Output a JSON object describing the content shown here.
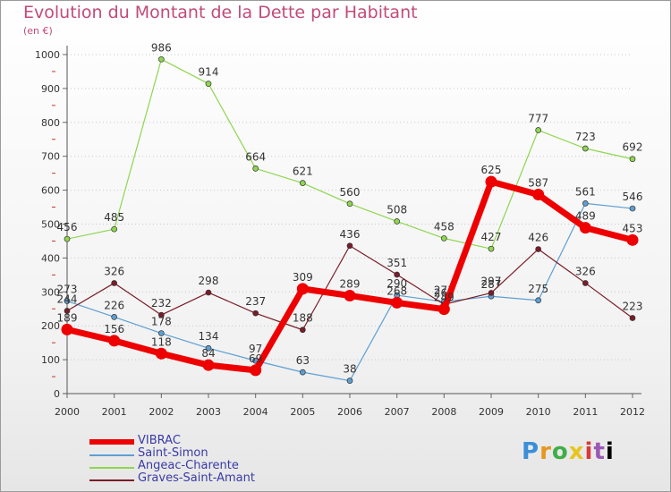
{
  "title": "Evolution du Montant de la Dette par Habitant",
  "subtitle": "(en €)",
  "logo_text": "Proxiti",
  "chart_data": {
    "type": "line",
    "x": [
      "2000",
      "2001",
      "2002",
      "2003",
      "2004",
      "2005",
      "2006",
      "2007",
      "2008",
      "2009",
      "2010",
      "2011",
      "2012"
    ],
    "yticks": [
      "0",
      "100",
      "200",
      "300",
      "400",
      "500",
      "600",
      "700",
      "800",
      "900",
      "1000"
    ],
    "ylim": [
      0,
      1000
    ],
    "grid": "horizontal-dotted",
    "legend_position": "bottom-left",
    "series": [
      {
        "name": "VIBRAC",
        "color": "#ee0000",
        "emphasis": true,
        "values": [
          189,
          156,
          118,
          84,
          69,
          309,
          289,
          268,
          249,
          625,
          587,
          489,
          453
        ],
        "labels": [
          "189",
          "156",
          "118",
          "84",
          "69",
          "309",
          "289",
          "268",
          "249",
          "625",
          "587",
          "489",
          "453"
        ]
      },
      {
        "name": "Saint-Simon",
        "color": "#5d9fd3",
        "emphasis": false,
        "values": [
          273,
          226,
          178,
          134,
          97,
          63,
          38,
          290,
          271,
          287,
          275,
          561,
          546
        ],
        "labels": [
          "273",
          "226",
          "178",
          "134",
          "97",
          "63",
          "38",
          "290",
          "271",
          "287",
          "275",
          "561",
          "546"
        ]
      },
      {
        "name": "Angeac-Charente",
        "color": "#8fd650",
        "emphasis": false,
        "values": [
          456,
          485,
          986,
          914,
          664,
          621,
          560,
          508,
          458,
          427,
          777,
          723,
          692
        ],
        "labels": [
          "456",
          "485",
          "986",
          "914",
          "664",
          "621",
          "560",
          "508",
          "458",
          "427",
          "777",
          "723",
          "692"
        ]
      },
      {
        "name": "Graves-Saint-Amant",
        "color": "#7a1c28",
        "emphasis": false,
        "values": [
          244,
          326,
          232,
          298,
          237,
          188,
          436,
          351,
          263,
          297,
          426,
          326,
          223
        ],
        "labels": [
          "244",
          "326",
          "232",
          "298",
          "237",
          "188",
          "436",
          "351",
          "263",
          "297",
          "426",
          "326",
          "223"
        ]
      }
    ]
  }
}
